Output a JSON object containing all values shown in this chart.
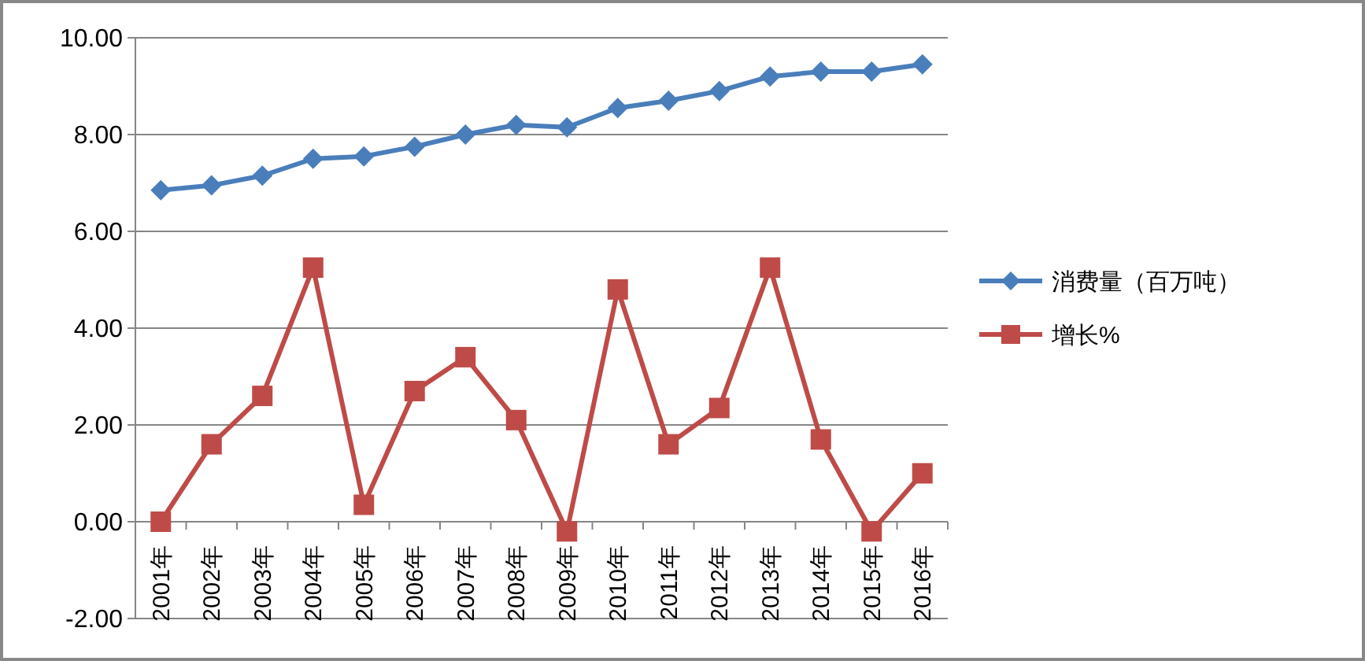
{
  "chart_data": {
    "type": "line",
    "categories": [
      "2001年",
      "2002年",
      "2003年",
      "2004年",
      "2005年",
      "2006年",
      "2007年",
      "2008年",
      "2009年",
      "2010年",
      "2011年",
      "2012年",
      "2013年",
      "2014年",
      "2015年",
      "2016年"
    ],
    "series": [
      {
        "name": "消费量（百万吨）",
        "color": "#4a7ebb",
        "marker": "diamond",
        "values": [
          6.85,
          6.95,
          7.15,
          7.5,
          7.55,
          7.75,
          8.0,
          8.2,
          8.15,
          8.55,
          8.7,
          8.9,
          9.2,
          9.3,
          9.3,
          9.45
        ]
      },
      {
        "name": "增长%",
        "color": "#be4b48",
        "marker": "square",
        "values": [
          0.0,
          1.6,
          2.6,
          5.25,
          0.35,
          2.7,
          3.4,
          2.1,
          -0.2,
          4.8,
          1.6,
          2.35,
          5.25,
          1.7,
          -0.2,
          1.0
        ]
      }
    ],
    "ylim": [
      -2,
      10
    ],
    "yticks": [
      {
        "value": -2,
        "label": "-2.00"
      },
      {
        "value": 0,
        "label": "0.00"
      },
      {
        "value": 2,
        "label": "2.00"
      },
      {
        "value": 4,
        "label": "4.00"
      },
      {
        "value": 6,
        "label": "6.00"
      },
      {
        "value": 8,
        "label": "8.00"
      },
      {
        "value": 10,
        "label": "10.00"
      }
    ],
    "grid": "y",
    "legend": "right"
  }
}
